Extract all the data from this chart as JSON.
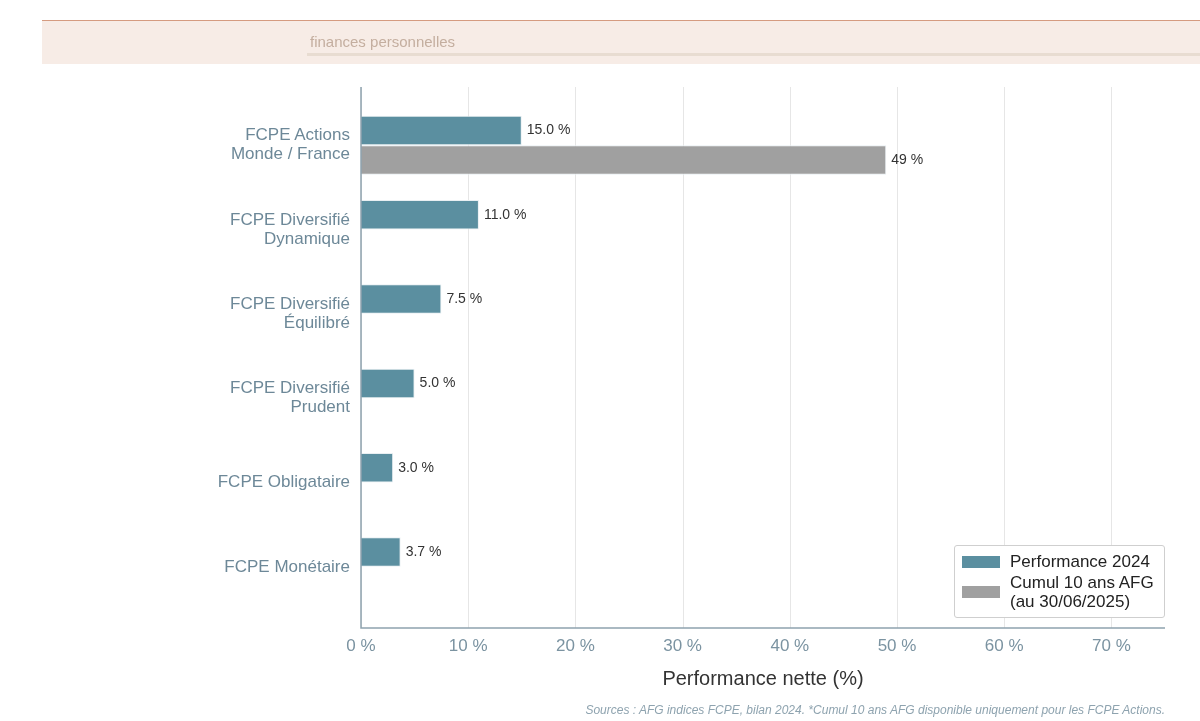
{
  "chart_data": {
    "type": "bar",
    "orientation": "horizontal",
    "subtitle": "finances personnelles",
    "categories": [
      "FCPE Actions\nMonde / France",
      "FCPE Diversifié\nDynamique",
      "FCPE Diversifié\nÉquilibré",
      "FCPE Diversifié\nPrudent",
      "FCPE Obligataire",
      "FCPE Monétaire"
    ],
    "series": [
      {
        "name": "Performance 2024",
        "color": "#5b8fa0",
        "values": [
          15.0,
          11.0,
          7.5,
          5.0,
          3.0,
          3.7
        ],
        "value_labels": [
          "15.0 %",
          "11.0 %",
          "7.5 %",
          "5.0 %",
          "3.0 %",
          "3.7 %"
        ]
      },
      {
        "name": "Cumul 10 ans AFG\n(au 30/06/2025)",
        "color": "#a0a0a0",
        "values": [
          49,
          null,
          null,
          null,
          null,
          null
        ],
        "value_labels": [
          "49 %",
          null,
          null,
          null,
          null,
          null
        ]
      }
    ],
    "xlabel": "Performance nette (%)",
    "xlim": [
      0,
      75
    ],
    "xticks": [
      {
        "value": 0,
        "label": "0 %"
      },
      {
        "value": 10,
        "label": "10 %"
      },
      {
        "value": 20,
        "label": "20 %"
      },
      {
        "value": 30,
        "label": "30 %"
      },
      {
        "value": 40,
        "label": "40 %"
      },
      {
        "value": 50,
        "label": "50 %"
      },
      {
        "value": 60,
        "label": "60 %"
      },
      {
        "value": 70,
        "label": "70 %"
      }
    ],
    "grid": "x",
    "legend": "bottom right",
    "annotations": [
      "Sources : AFG indices FCPE, bilan 2024. *Cumul 10 ans AFG disponible uniquement pour les FCPE Actions."
    ]
  }
}
